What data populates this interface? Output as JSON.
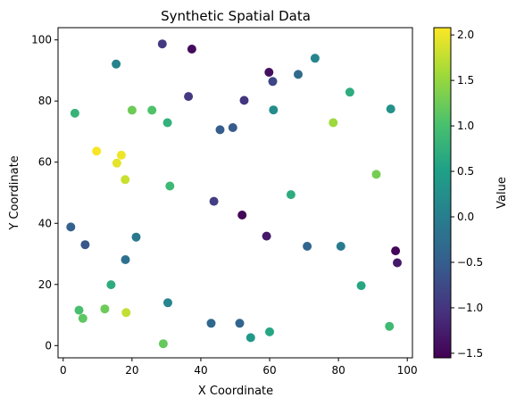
{
  "chart_data": {
    "type": "scatter",
    "title": "Synthetic Spatial Data",
    "xlabel": "X Coordinate",
    "ylabel": "Y Coordinate",
    "xlim": [
      -1.5,
      101.5
    ],
    "ylim": [
      -4,
      104
    ],
    "xticks": [
      0,
      20,
      40,
      60,
      80,
      100
    ],
    "yticks": [
      0,
      20,
      40,
      60,
      80,
      100
    ],
    "colorbar": {
      "label": "Value",
      "range": [
        -1.55,
        2.08
      ],
      "ticks": [
        "-1.5",
        "-1.0",
        "-0.5",
        "0.0",
        "0.5",
        "1.0",
        "1.5",
        "2.0"
      ],
      "colormap": "viridis"
    },
    "points": [
      {
        "x": 28.8,
        "y": 98.7,
        "v": -0.95
      },
      {
        "x": 37.4,
        "y": 97.0,
        "v": -1.45
      },
      {
        "x": 15.4,
        "y": 92.1,
        "v": 0.05
      },
      {
        "x": 59.8,
        "y": 89.4,
        "v": -1.4
      },
      {
        "x": 68.3,
        "y": 88.7,
        "v": -0.3
      },
      {
        "x": 73.2,
        "y": 94.0,
        "v": 0.1
      },
      {
        "x": 60.9,
        "y": 86.4,
        "v": -0.8
      },
      {
        "x": 83.3,
        "y": 82.9,
        "v": 0.7
      },
      {
        "x": 36.4,
        "y": 81.5,
        "v": -0.95
      },
      {
        "x": 52.6,
        "y": 80.2,
        "v": -1.0
      },
      {
        "x": 3.4,
        "y": 76.0,
        "v": 0.8
      },
      {
        "x": 20.0,
        "y": 77.0,
        "v": 1.25
      },
      {
        "x": 25.8,
        "y": 77.0,
        "v": 1.05
      },
      {
        "x": 61.1,
        "y": 77.1,
        "v": 0.2
      },
      {
        "x": 95.2,
        "y": 77.4,
        "v": 0.3
      },
      {
        "x": 30.3,
        "y": 72.9,
        "v": 0.75
      },
      {
        "x": 45.6,
        "y": 70.6,
        "v": -0.5
      },
      {
        "x": 49.3,
        "y": 71.3,
        "v": -0.55
      },
      {
        "x": 78.5,
        "y": 72.9,
        "v": 1.55
      },
      {
        "x": 9.7,
        "y": 63.6,
        "v": 2.05
      },
      {
        "x": 16.9,
        "y": 62.3,
        "v": 2.0
      },
      {
        "x": 15.6,
        "y": 59.7,
        "v": 1.95
      },
      {
        "x": 18.0,
        "y": 54.3,
        "v": 1.8
      },
      {
        "x": 31.0,
        "y": 52.2,
        "v": 0.9
      },
      {
        "x": 66.2,
        "y": 49.4,
        "v": 0.7
      },
      {
        "x": 91.0,
        "y": 56.0,
        "v": 1.3
      },
      {
        "x": 43.8,
        "y": 47.2,
        "v": -0.9
      },
      {
        "x": 2.2,
        "y": 38.8,
        "v": -0.45
      },
      {
        "x": 52.0,
        "y": 42.7,
        "v": -1.5
      },
      {
        "x": 21.2,
        "y": 35.5,
        "v": -0.1
      },
      {
        "x": 59.1,
        "y": 35.8,
        "v": -1.3
      },
      {
        "x": 96.6,
        "y": 31.0,
        "v": -1.5
      },
      {
        "x": 6.4,
        "y": 33.0,
        "v": -0.6
      },
      {
        "x": 70.9,
        "y": 32.5,
        "v": -0.4
      },
      {
        "x": 80.7,
        "y": 32.5,
        "v": -0.05
      },
      {
        "x": 97.1,
        "y": 27.1,
        "v": -1.3
      },
      {
        "x": 18.1,
        "y": 28.1,
        "v": -0.2
      },
      {
        "x": 86.6,
        "y": 19.6,
        "v": 0.6
      },
      {
        "x": 13.9,
        "y": 19.9,
        "v": 0.7
      },
      {
        "x": 30.4,
        "y": 14.0,
        "v": 0.1
      },
      {
        "x": 4.6,
        "y": 11.6,
        "v": 1.0
      },
      {
        "x": 12.1,
        "y": 12.0,
        "v": 1.25
      },
      {
        "x": 18.3,
        "y": 10.8,
        "v": 1.75
      },
      {
        "x": 5.7,
        "y": 8.9,
        "v": 1.15
      },
      {
        "x": 43.0,
        "y": 7.3,
        "v": -0.35
      },
      {
        "x": 51.3,
        "y": 7.3,
        "v": -0.4
      },
      {
        "x": 94.8,
        "y": 6.3,
        "v": 0.9
      },
      {
        "x": 54.5,
        "y": 2.6,
        "v": 0.4
      },
      {
        "x": 60.0,
        "y": 4.5,
        "v": 0.6
      },
      {
        "x": 29.1,
        "y": 0.6,
        "v": 1.2
      }
    ]
  }
}
